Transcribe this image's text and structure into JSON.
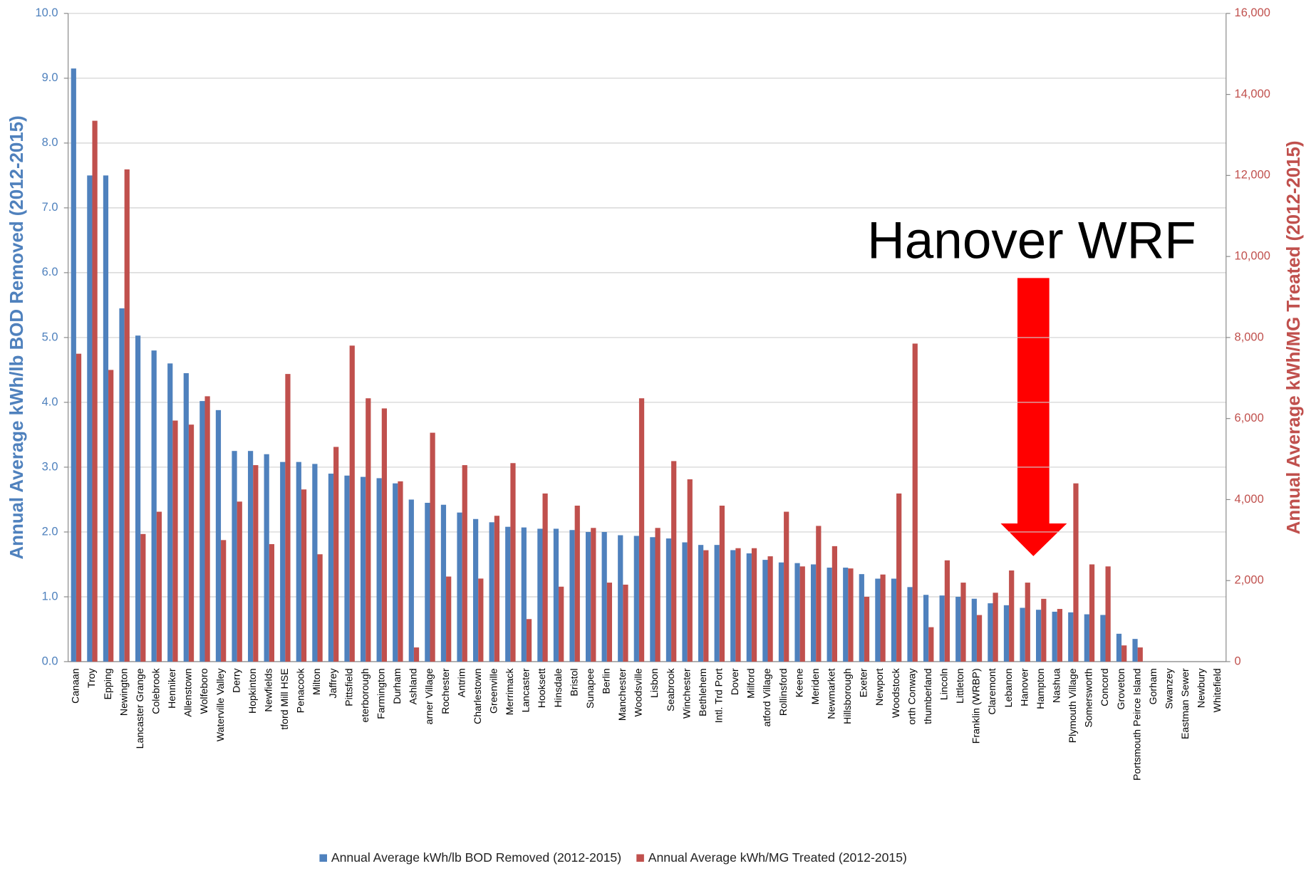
{
  "chart_data": {
    "type": "bar",
    "y_label": "Annual Average kWh/lb BOD Removed (2012-2015)",
    "y2_label": "Annual Average kWh/MG Treated (2012-2015)",
    "annotation": "Hanover WRF",
    "categories": [
      "Canaan",
      "Troy",
      "Epping",
      "Newington",
      "Lancaster Grange",
      "Colebrook",
      "Henniker",
      "Allenstown",
      "Wolfeboro",
      "Waterville Valley",
      "Derry",
      "Hopkinton",
      "Newfields",
      "tford Mill HSE",
      "Penacook",
      "Milton",
      "Jaffrey",
      "Pittsfield",
      "eterborough",
      "Farmington",
      "Durham",
      "Ashland",
      "arner Village",
      "Rochester",
      "Antrim",
      "Charlestown",
      "Greenville",
      "Merrimack",
      "Lancaster",
      "Hooksett",
      "Hinsdale",
      "Bristol",
      "Sunapee",
      "Berlin",
      "Manchester",
      "Woodsville",
      "Lisbon",
      "Seabrook",
      "Winchester",
      "Bethlehem",
      "Intl. Trd Port",
      "Dover",
      "Milford",
      "atford Village",
      "Rollinsford",
      "Keene",
      "Meriden",
      "Newmarket",
      "Hillsborough",
      "Exeter",
      "Newport",
      "Woodstock",
      "orth Conway",
      "thumberland",
      "Lincoln",
      "Littleton",
      "Franklin (WRBP)",
      "Claremont",
      "Lebanon",
      "Hanover",
      "Hampton",
      "Nashua",
      "Plymouth Village",
      "Somersworth",
      "Concord",
      "Groveton",
      "Portsmouth Peirce Island",
      "Gorham",
      "Swanzey",
      "Eastman Sewer",
      "Newbury",
      "Whitefield"
    ],
    "series": [
      {
        "name": "Annual Average kWh/lb BOD Removed (2012-2015)",
        "color": "#4f81bd",
        "axis": "y",
        "values": [
          9.15,
          7.5,
          7.5,
          5.45,
          5.03,
          4.8,
          4.6,
          4.45,
          4.02,
          3.88,
          3.25,
          3.25,
          3.2,
          3.08,
          3.08,
          3.05,
          2.9,
          2.87,
          2.85,
          2.83,
          2.75,
          2.5,
          2.45,
          2.42,
          2.3,
          2.2,
          2.15,
          2.08,
          2.07,
          2.05,
          2.05,
          2.03,
          2.0,
          2.0,
          1.95,
          1.94,
          1.92,
          1.9,
          1.84,
          1.8,
          1.8,
          1.72,
          1.67,
          1.57,
          1.53,
          1.52,
          1.5,
          1.45,
          1.45,
          1.35,
          1.28,
          1.28,
          1.15,
          1.03,
          1.02,
          1.0,
          0.97,
          0.9,
          0.87,
          0.83,
          0.8,
          0.77,
          0.76,
          0.73,
          0.72,
          0.43,
          0.35,
          0,
          0,
          0,
          0,
          0
        ]
      },
      {
        "name": "Annual Average kWh/MG Treated (2012-2015)",
        "color": "#c0504d",
        "axis": "y2",
        "values": [
          7600,
          13350,
          7200,
          12150,
          3150,
          3700,
          5950,
          5850,
          6550,
          3000,
          3950,
          4850,
          2900,
          7100,
          4250,
          2650,
          5300,
          7800,
          6500,
          6250,
          4450,
          350,
          5650,
          2100,
          4850,
          2050,
          3600,
          4900,
          1050,
          4150,
          1850,
          3850,
          3300,
          1950,
          1900,
          6500,
          3300,
          4950,
          4500,
          2750,
          3850,
          2800,
          2800,
          2600,
          3700,
          2350,
          3350,
          2850,
          2300,
          1600,
          2150,
          4150,
          7850,
          850,
          2500,
          1950,
          1150,
          1700,
          2250,
          1950,
          1550,
          1300,
          4400,
          2400,
          2350,
          400,
          350,
          0,
          0,
          0,
          0,
          0
        ]
      }
    ],
    "ylim": [
      0,
      10
    ],
    "yticks": [
      {
        "value": 0,
        "label": "0.0"
      },
      {
        "value": 1,
        "label": "1.0"
      },
      {
        "value": 2,
        "label": "2.0"
      },
      {
        "value": 3,
        "label": "3.0"
      },
      {
        "value": 4,
        "label": "4.0"
      },
      {
        "value": 5,
        "label": "5.0"
      },
      {
        "value": 6,
        "label": "6.0"
      },
      {
        "value": 7,
        "label": "7.0"
      },
      {
        "value": 8,
        "label": "8.0"
      },
      {
        "value": 9,
        "label": "9.0"
      },
      {
        "value": 10,
        "label": "10.0"
      }
    ],
    "y2lim": [
      0,
      16000
    ],
    "y2ticks": [
      0,
      {
        "value": 2000,
        "label": "2,000"
      },
      {
        "value": 4000,
        "label": "4,000"
      },
      {
        "value": 6000,
        "label": "6,000"
      },
      {
        "value": 8000,
        "label": "8,000"
      },
      {
        "value": 10000,
        "label": "10,000"
      },
      {
        "value": 12000,
        "label": "12,000"
      },
      {
        "value": 14000,
        "label": "14,000"
      },
      {
        "value": 16000,
        "label": "16,000"
      }
    ],
    "grid": true,
    "legend": "bottom"
  }
}
